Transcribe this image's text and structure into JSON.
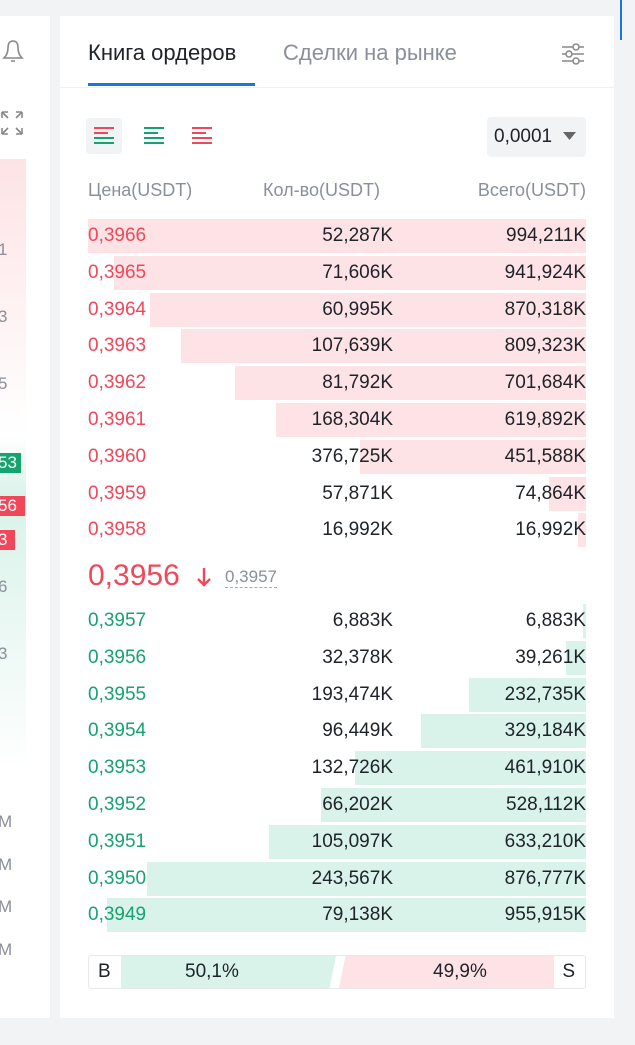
{
  "left_panel": {
    "labels": [
      "1",
      "3",
      "5",
      "53",
      "56",
      "3",
      "6",
      "3",
      "М",
      "М",
      "М",
      "М"
    ]
  },
  "tabs": [
    "Книга ордеров",
    "Сделки на рынке"
  ],
  "precision": "0,0001",
  "headers": [
    "Цена(USDT)",
    "Кол-во(USDT)",
    "Всего(USDT)"
  ],
  "asks": [
    [
      "0,3966",
      "52,287K",
      "994,211K"
    ],
    [
      "0,3965",
      "71,606K",
      "941,924K"
    ],
    [
      "0,3964",
      "60,995K",
      "870,318K"
    ],
    [
      "0,3963",
      "107,639K",
      "809,323K"
    ],
    [
      "0,3962",
      "81,792K",
      "701,684K"
    ],
    [
      "0,3961",
      "168,304K",
      "619,892K"
    ],
    [
      "0,3960",
      "376,725K",
      "451,588K"
    ],
    [
      "0,3959",
      "57,871K",
      "74,864K"
    ],
    [
      "0,3958",
      "16,992K",
      "16,992K"
    ]
  ],
  "mid": {
    "price": "0,3956",
    "mark": "0,3957"
  },
  "bids": [
    [
      "0,3957",
      "6,883K",
      "6,883K"
    ],
    [
      "0,3956",
      "32,378K",
      "39,261K"
    ],
    [
      "0,3955",
      "193,474K",
      "232,735K"
    ],
    [
      "0,3954",
      "96,449K",
      "329,184K"
    ],
    [
      "0,3953",
      "132,726K",
      "461,910K"
    ],
    [
      "0,3952",
      "66,202K",
      "528,112K"
    ],
    [
      "0,3951",
      "105,097K",
      "633,210K"
    ],
    [
      "0,3950",
      "243,567K",
      "876,777K"
    ],
    [
      "0,3949",
      "79,138K",
      "955,915K"
    ]
  ],
  "ratio": {
    "buy_label": "B",
    "buy": "50,1%",
    "sell": "49,9%",
    "sell_label": "S"
  }
}
